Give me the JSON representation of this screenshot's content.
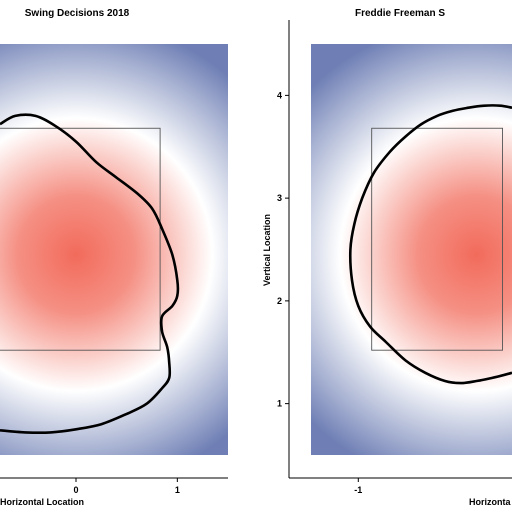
{
  "chart_data": [
    {
      "type": "heatmap",
      "title": "Swing Decisions 2018",
      "xlabel": "Horizontal Location",
      "ylabel": "",
      "xlim": [
        -0.75,
        1.5
      ],
      "ylim": [
        0.5,
        4.5
      ],
      "xticks": [
        0,
        1
      ],
      "yticks": [],
      "colors": {
        "low": "#6f7fb5",
        "mid": "#ffffff",
        "high": "#f26b5b",
        "contour": "#000000",
        "zone": "#555555"
      },
      "heat_peak": {
        "x": 0.0,
        "y": 2.45
      },
      "strike_zone": {
        "x": [
          -0.83,
          0.83
        ],
        "y": [
          1.52,
          3.68
        ]
      },
      "contour": [
        [
          -0.75,
          3.72
        ],
        [
          -0.6,
          3.8
        ],
        [
          -0.4,
          3.8
        ],
        [
          -0.2,
          3.7
        ],
        [
          0.0,
          3.55
        ],
        [
          0.2,
          3.35
        ],
        [
          0.4,
          3.2
        ],
        [
          0.6,
          3.05
        ],
        [
          0.75,
          2.9
        ],
        [
          0.85,
          2.7
        ],
        [
          0.95,
          2.45
        ],
        [
          1.0,
          2.2
        ],
        [
          1.0,
          2.05
        ],
        [
          0.95,
          1.95
        ],
        [
          0.85,
          1.85
        ],
        [
          0.85,
          1.7
        ],
        [
          0.9,
          1.55
        ],
        [
          0.92,
          1.4
        ],
        [
          0.92,
          1.25
        ],
        [
          0.85,
          1.15
        ],
        [
          0.7,
          1.0
        ],
        [
          0.5,
          0.9
        ],
        [
          0.25,
          0.8
        ],
        [
          0.0,
          0.75
        ],
        [
          -0.25,
          0.72
        ],
        [
          -0.5,
          0.72
        ],
        [
          -0.75,
          0.74
        ]
      ]
    },
    {
      "type": "heatmap",
      "title": "Freddie Freeman S",
      "xlabel": "Horizonta",
      "ylabel": "Vertical Location",
      "xlim": [
        -1.6,
        0.95
      ],
      "ylim": [
        0.5,
        4.5
      ],
      "xticks": [
        -1
      ],
      "yticks": [
        1,
        2,
        3,
        4
      ],
      "colors": {
        "low": "#6f7fb5",
        "mid": "#ffffff",
        "high": "#f26b5b",
        "contour": "#000000",
        "zone": "#555555"
      },
      "heat_peak": {
        "x": 0.5,
        "y": 2.45
      },
      "strike_zone": {
        "x": [
          -0.83,
          0.83
        ],
        "y": [
          1.52,
          3.68
        ]
      },
      "contour": [
        [
          0.95,
          3.88
        ],
        [
          0.8,
          3.9
        ],
        [
          0.6,
          3.9
        ],
        [
          0.4,
          3.88
        ],
        [
          0.2,
          3.85
        ],
        [
          0.0,
          3.8
        ],
        [
          -0.2,
          3.72
        ],
        [
          -0.4,
          3.6
        ],
        [
          -0.6,
          3.45
        ],
        [
          -0.8,
          3.25
        ],
        [
          -0.95,
          3.0
        ],
        [
          -1.05,
          2.75
        ],
        [
          -1.1,
          2.5
        ],
        [
          -1.08,
          2.2
        ],
        [
          -1.0,
          1.95
        ],
        [
          -0.85,
          1.75
        ],
        [
          -0.65,
          1.6
        ],
        [
          -0.4,
          1.42
        ],
        [
          -0.15,
          1.3
        ],
        [
          0.1,
          1.22
        ],
        [
          0.3,
          1.2
        ],
        [
          0.5,
          1.22
        ],
        [
          0.7,
          1.25
        ],
        [
          0.95,
          1.3
        ]
      ]
    }
  ]
}
